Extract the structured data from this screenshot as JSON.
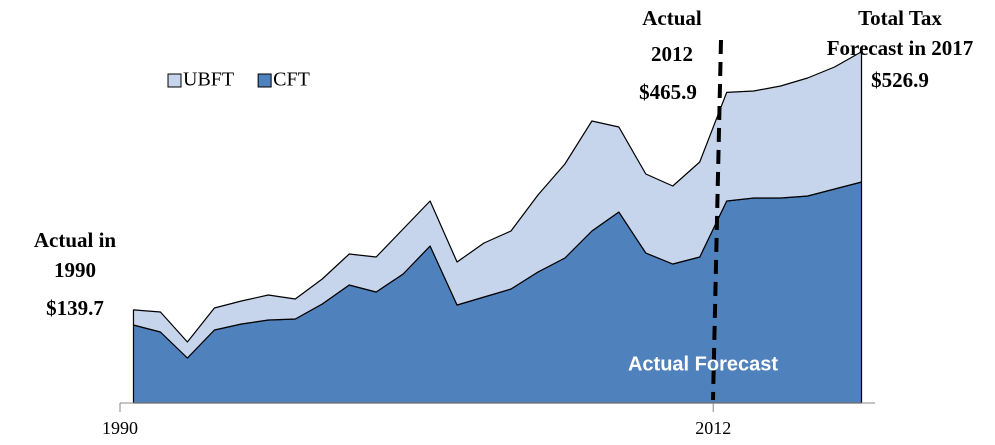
{
  "chart_data": {
    "type": "stacked_area",
    "categories": [
      "1990",
      null,
      null,
      null,
      null,
      null,
      null,
      null,
      null,
      null,
      null,
      null,
      null,
      null,
      null,
      null,
      null,
      null,
      null,
      null,
      null,
      null,
      "2012",
      null,
      null,
      null,
      null,
      null
    ],
    "series": [
      {
        "name": "UBFT",
        "color": "#c6d5ec",
        "values": [
          22.7,
          30,
          24,
          33,
          34.5,
          37.5,
          30,
          37.5,
          46.5,
          52.5,
          67.5,
          67.5,
          64.5,
          81,
          87,
          115.5,
          141,
          165,
          127.5,
          118.5,
          117,
          142.5,
          162.9,
          160.5,
          168,
          177,
          183,
          195.4
        ]
      },
      {
        "name": "CFT",
        "color": "#4f81bd",
        "values": [
          117,
          106.5,
          67.5,
          109.5,
          118.5,
          124.5,
          126,
          148.5,
          177,
          166.5,
          193.5,
          235.5,
          147,
          159,
          171,
          196.5,
          217.5,
          258,
          286.5,
          225,
          208.5,
          219,
          303,
          307.5,
          307.5,
          310.5,
          321,
          331.5
        ]
      }
    ],
    "ylim": [
      0,
      600
    ],
    "annotations": [
      "Actual in",
      "1990",
      "$139.7",
      "Actual",
      "2012",
      "$465.9",
      "Total Tax",
      "Forecast in 2017",
      "$526.9",
      "Actual Forecast"
    ]
  }
}
